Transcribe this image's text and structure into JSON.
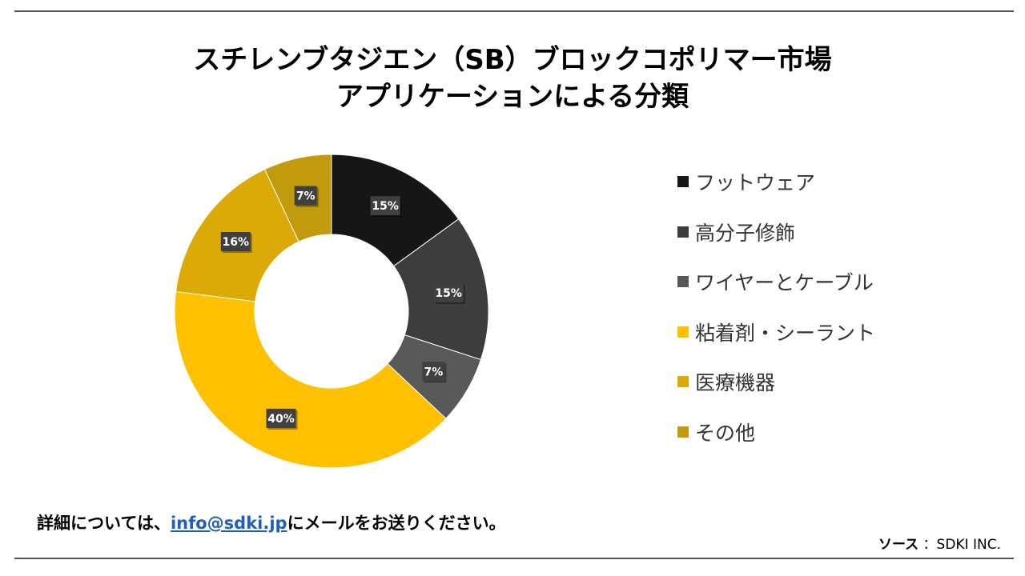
{
  "title_lines": [
    "スチレンブタジエン（SB）ブロックコポリマー市場",
    "アプリケーションによる分類"
  ],
  "chart_data": {
    "type": "pie",
    "subtype": "donut",
    "categories": [
      "フットウェア",
      "高分子修飾",
      "ワイヤーとケーブル",
      "粘着剤・シーラント",
      "医療機器",
      "その他"
    ],
    "values": [
      15,
      15,
      7,
      40,
      16,
      7
    ],
    "data_labels": [
      "15%",
      "15%",
      "7%",
      "40%",
      "16%",
      "7%"
    ],
    "colors": [
      "#161616",
      "#3d3d3d",
      "#595959",
      "#ffc000",
      "#dcaa06",
      "#c19b0b"
    ],
    "legend_position": "right"
  },
  "footer": {
    "contact_prefix": "詳細については、",
    "contact_email": "info@sdki.jp",
    "contact_suffix": "にメールをお送りください。",
    "source_label": "ソース",
    "source_value": "：SDKI INC."
  }
}
